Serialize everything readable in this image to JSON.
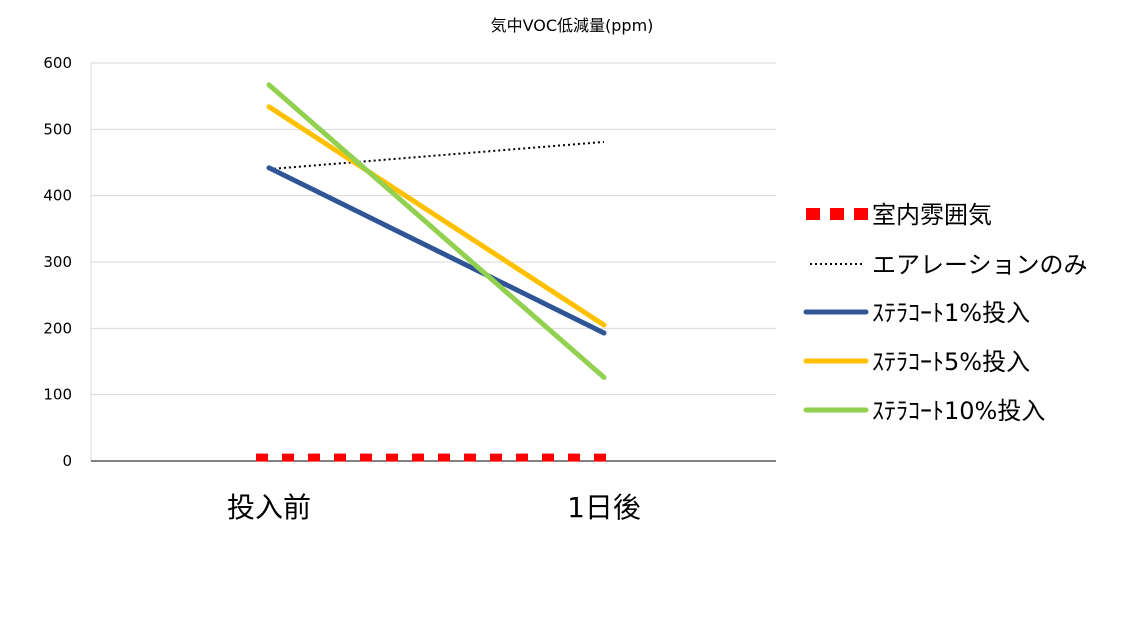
{
  "chart_data": {
    "type": "line",
    "title": "気中VOC低減量(ppm)",
    "xlabel": "",
    "ylabel": "",
    "categories": [
      "投入前",
      "1日後"
    ],
    "ylim": [
      0,
      600
    ],
    "yticks": [
      0,
      100,
      200,
      300,
      400,
      500,
      600
    ],
    "grid": true,
    "legend_position": "right",
    "series": [
      {
        "name": "室内雰囲気",
        "values": [
          5,
          5
        ],
        "color": "#ff0000",
        "style": "square-dash"
      },
      {
        "name": "エアレーションのみ",
        "values": [
          440,
          481
        ],
        "color": "#000000",
        "style": "dotted"
      },
      {
        "name": "ｽﾃﾗｺｰﾄ1%投入",
        "values": [
          442,
          193
        ],
        "color": "#2f5597",
        "style": "solid"
      },
      {
        "name": "ｽﾃﾗｺｰﾄ5%投入",
        "values": [
          534,
          205
        ],
        "color": "#ffc000",
        "style": "solid"
      },
      {
        "name": "ｽﾃﾗｺｰﾄ10%投入",
        "values": [
          567,
          126
        ],
        "color": "#92d050",
        "style": "solid"
      }
    ]
  }
}
